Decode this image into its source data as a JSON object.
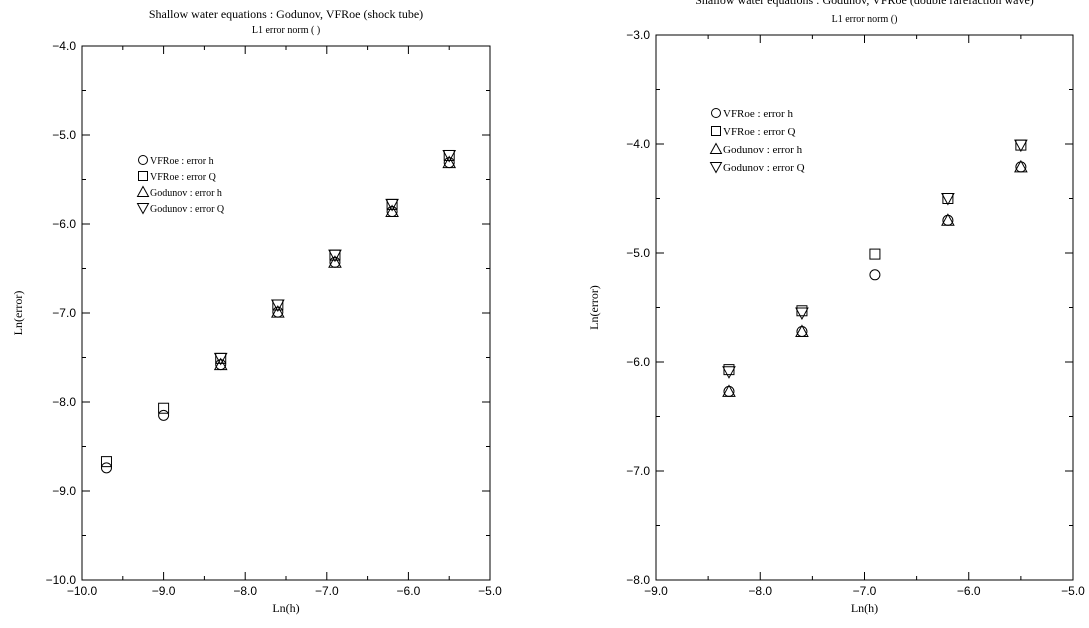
{
  "chart_data": [
    {
      "type": "scatter",
      "title": "Shallow water equations : Godunov, VFRoe (shock tube)",
      "subtitle": "L1 error norm ( )",
      "xlabel": "Ln(h)",
      "ylabel": "Ln(error)",
      "xlim": [
        -10.0,
        -5.0
      ],
      "ylim": [
        -10.0,
        -4.0
      ],
      "xticks": [
        -10.0,
        -9.0,
        -8.0,
        -7.0,
        -6.0,
        -5.0
      ],
      "xtick_labels": [
        "−10.0",
        "−9.0",
        "−8.0",
        "−7.0",
        "−6.0",
        "−5.0"
      ],
      "yticks": [
        -10.0,
        -9.0,
        -8.0,
        -7.0,
        -6.0,
        -5.0,
        -4.0
      ],
      "ytick_labels": [
        "−10.0",
        "−9.0",
        "−8.0",
        "−7.0",
        "−6.0",
        "−5.0",
        "−4.0"
      ],
      "grid": false,
      "legend_position": "upper-left",
      "series": [
        {
          "name": "VFRoe : error h",
          "marker": "circle",
          "x": [
            -9.7,
            -9.0,
            -8.3,
            -7.6,
            -6.9,
            -6.2,
            -5.5
          ],
          "y": [
            -8.74,
            -8.15,
            -7.58,
            -6.99,
            -6.43,
            -5.86,
            -5.31
          ]
        },
        {
          "name": "VFRoe : error Q",
          "marker": "square",
          "x": [
            -9.7,
            -9.0,
            -8.3,
            -7.6,
            -6.9,
            -6.2,
            -5.5
          ],
          "y": [
            -8.67,
            -8.07,
            -7.51,
            -6.91,
            -6.35,
            -5.78,
            -5.23
          ]
        },
        {
          "name": "Godunov : error h",
          "marker": "triangle-up",
          "x": [
            -8.3,
            -7.6,
            -6.9,
            -6.2,
            -5.5
          ],
          "y": [
            -7.58,
            -6.99,
            -6.43,
            -5.86,
            -5.31
          ]
        },
        {
          "name": "Godunov : error Q",
          "marker": "triangle-down",
          "x": [
            -8.3,
            -7.6,
            -6.9,
            -6.2,
            -5.5
          ],
          "y": [
            -7.51,
            -6.91,
            -6.35,
            -5.78,
            -5.23
          ]
        }
      ]
    },
    {
      "type": "scatter",
      "title": "Shallow water equations : Godunov, VFRoe (double rarefaction wave)",
      "subtitle": "L1 error norm ()",
      "xlabel": "Ln(h)",
      "ylabel": "Ln(error)",
      "xlim": [
        -9.0,
        -5.0
      ],
      "ylim": [
        -8.0,
        -3.0
      ],
      "xticks": [
        -9.0,
        -8.0,
        -7.0,
        -6.0,
        -5.0
      ],
      "xtick_labels": [
        "−9.0",
        "−8.0",
        "−7.0",
        "−6.0",
        "−5.0"
      ],
      "yticks": [
        -8.0,
        -7.0,
        -6.0,
        -5.0,
        -4.0,
        -3.0
      ],
      "ytick_labels": [
        "−8.0",
        "−7.0",
        "−6.0",
        "−5.0",
        "−4.0",
        "−3.0"
      ],
      "grid": false,
      "legend_position": "upper-left",
      "series": [
        {
          "name": "VFRoe : error h",
          "marker": "circle",
          "x": [
            -8.3,
            -7.6,
            -6.9,
            -6.2,
            -5.5
          ],
          "y": [
            -6.27,
            -5.72,
            -5.2,
            -4.7,
            -4.21
          ]
        },
        {
          "name": "VFRoe : error Q",
          "marker": "square",
          "x": [
            -8.3,
            -7.6,
            -6.9,
            -6.2,
            -5.5
          ],
          "y": [
            -6.07,
            -5.53,
            -5.01,
            -4.5,
            -4.01
          ]
        },
        {
          "name": "Godunov : error h",
          "marker": "triangle-up",
          "x": [
            -8.3,
            -7.6,
            -6.2,
            -5.5
          ],
          "y": [
            -6.27,
            -5.72,
            -4.7,
            -4.21
          ]
        },
        {
          "name": "Godunov : error Q",
          "marker": "triangle-down",
          "x": [
            -8.3,
            -7.6,
            -6.2,
            -5.5
          ],
          "y": [
            -6.09,
            -5.55,
            -4.5,
            -4.01
          ]
        }
      ]
    }
  ]
}
